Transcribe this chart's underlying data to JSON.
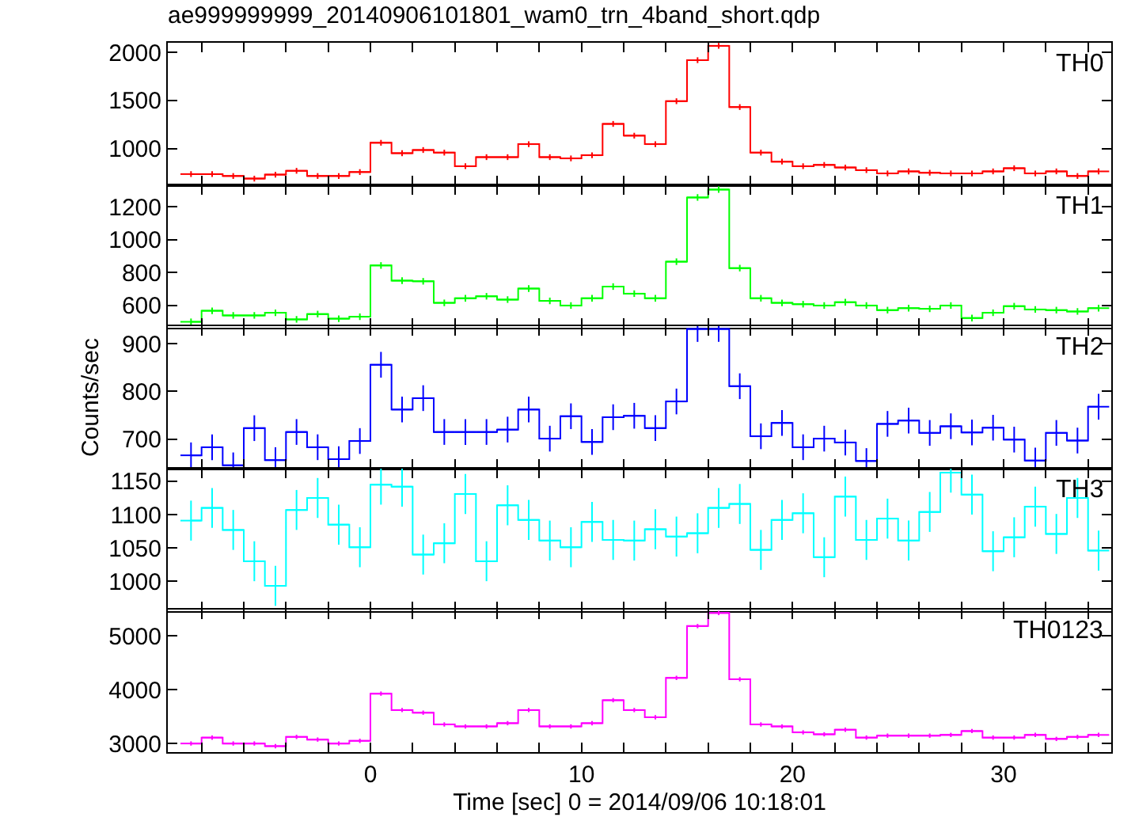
{
  "chart_data": [
    {
      "type": "step",
      "title": "ae999999999_20140906101801_wam0_trn_4band_short.qdp",
      "tick_labels": "y",
      "x": [
        -8.5,
        -7.5,
        -6.5,
        -5.5,
        -4.5,
        -3.5,
        -2.5,
        -1.5,
        -0.5,
        0.5,
        1.5,
        2.5,
        3.5,
        4.5,
        5.5,
        6.5,
        7.5,
        8.5,
        9.5,
        10.5,
        11.5,
        12.5,
        13.5,
        14.5,
        15.5,
        16.5,
        17.5,
        18.5,
        19.5,
        20.5,
        21.5,
        22.5,
        23.5,
        24.5,
        25.5,
        26.5,
        27.5,
        28.5,
        29.5,
        30.5,
        31.5,
        32.5,
        33.5,
        34.5
      ],
      "xlim": [
        -9.6,
        35.1
      ],
      "xticks": [
        {
          "value": -8,
          "label": null
        },
        {
          "value": -6,
          "label": null
        },
        {
          "value": -4,
          "label": null
        },
        {
          "value": -2,
          "label": null
        },
        0,
        {
          "value": 2,
          "label": null
        },
        {
          "value": 4,
          "label": null
        },
        {
          "value": 6,
          "label": null
        },
        {
          "value": 8,
          "label": null
        },
        10,
        {
          "value": 12,
          "label": null
        },
        {
          "value": 14,
          "label": null
        },
        {
          "value": 16,
          "label": null
        },
        {
          "value": 18,
          "label": null
        },
        20,
        {
          "value": 22,
          "label": null
        },
        {
          "value": 24,
          "label": null
        },
        {
          "value": 26,
          "label": null
        },
        {
          "value": 28,
          "label": null
        },
        30,
        {
          "value": 32,
          "label": null
        },
        {
          "value": 34,
          "label": null
        }
      ],
      "ylim": [
        620,
        2100
      ],
      "yticks": [
        1000,
        1500,
        2000
      ],
      "series": [
        {
          "name": "TH0",
          "color": "#ff0000",
          "values": [
            736,
            736,
            716,
            689,
            730,
            770,
            716,
            716,
            757,
            1061,
            953,
            986,
            959,
            818,
            912,
            912,
            1047,
            912,
            899,
            932,
            1257,
            1135,
            1047,
            1493,
            1919,
            2068,
            1432,
            959,
            865,
            818,
            831,
            804,
            777,
            743,
            764,
            750,
            743,
            743,
            764,
            797,
            743,
            764,
            716,
            764
          ],
          "errors": [
            30,
            30,
            30,
            30,
            30,
            30,
            30,
            30,
            30,
            30,
            30,
            30,
            30,
            30,
            30,
            30,
            30,
            30,
            30,
            30,
            30,
            30,
            30,
            30,
            30,
            30,
            30,
            30,
            30,
            30,
            30,
            30,
            30,
            30,
            30,
            30,
            30,
            30,
            30,
            30,
            30,
            30,
            30,
            30
          ],
          "xerrors": [
            0.5,
            0.5,
            0.5,
            0.5,
            0.5,
            0.5,
            0.5,
            0.5,
            0.5,
            0.5,
            0.5,
            0.5,
            0.5,
            0.5,
            0.5,
            0.5,
            0.5,
            0.5,
            0.5,
            0.5,
            0.5,
            0.5,
            0.5,
            0.5,
            0.5,
            0.5,
            0.5,
            0.5,
            0.5,
            0.5,
            0.5,
            0.5,
            0.5,
            0.5,
            0.5,
            0.5,
            0.5,
            0.5,
            0.5,
            0.5,
            0.5,
            0.5,
            0.5,
            0.5
          ]
        }
      ]
    },
    {
      "type": "step",
      "tick_labels": "y",
      "x": [
        -8.5,
        -7.5,
        -6.5,
        -5.5,
        -4.5,
        -3.5,
        -2.5,
        -1.5,
        -0.5,
        0.5,
        1.5,
        2.5,
        3.5,
        4.5,
        5.5,
        6.5,
        7.5,
        8.5,
        9.5,
        10.5,
        11.5,
        12.5,
        13.5,
        14.5,
        15.5,
        16.5,
        17.5,
        18.5,
        19.5,
        20.5,
        21.5,
        22.5,
        23.5,
        24.5,
        25.5,
        26.5,
        27.5,
        28.5,
        29.5,
        30.5,
        31.5,
        32.5,
        33.5,
        34.5
      ],
      "xlim": [
        -9.6,
        35.1
      ],
      "xticks": [
        {
          "value": -8,
          "label": null
        },
        {
          "value": -6,
          "label": null
        },
        {
          "value": -4,
          "label": null
        },
        {
          "value": -2,
          "label": null
        },
        0,
        {
          "value": 2,
          "label": null
        },
        {
          "value": 4,
          "label": null
        },
        {
          "value": 6,
          "label": null
        },
        {
          "value": 8,
          "label": null
        },
        10,
        {
          "value": 12,
          "label": null
        },
        {
          "value": 14,
          "label": null
        },
        {
          "value": 16,
          "label": null
        },
        {
          "value": 18,
          "label": null
        },
        20,
        {
          "value": 22,
          "label": null
        },
        {
          "value": 24,
          "label": null
        },
        {
          "value": 26,
          "label": null
        },
        {
          "value": 28,
          "label": null
        },
        30,
        {
          "value": 32,
          "label": null
        },
        {
          "value": 34,
          "label": null
        }
      ],
      "ylim": [
        465,
        1330
      ],
      "yticks": [
        600,
        800,
        1000,
        1200
      ],
      "series": [
        {
          "name": "TH1",
          "color": "#00ff00",
          "values": [
            501,
            568,
            540,
            540,
            556,
            516,
            548,
            520,
            532,
            843,
            751,
            747,
            616,
            644,
            656,
            636,
            703,
            628,
            600,
            644,
            715,
            672,
            644,
            866,
            1256,
            1304,
            827,
            644,
            616,
            608,
            600,
            620,
            600,
            572,
            584,
            580,
            600,
            524,
            556,
            596,
            576,
            572,
            564,
            584
          ],
          "errors": [
            20,
            20,
            20,
            20,
            20,
            20,
            20,
            20,
            20,
            20,
            20,
            20,
            20,
            20,
            20,
            20,
            20,
            20,
            20,
            20,
            20,
            20,
            20,
            20,
            20,
            20,
            20,
            20,
            20,
            20,
            20,
            20,
            20,
            20,
            20,
            20,
            20,
            20,
            20,
            20,
            20,
            20,
            20,
            20
          ],
          "xerrors": [
            0.5,
            0.5,
            0.5,
            0.5,
            0.5,
            0.5,
            0.5,
            0.5,
            0.5,
            0.5,
            0.5,
            0.5,
            0.5,
            0.5,
            0.5,
            0.5,
            0.5,
            0.5,
            0.5,
            0.5,
            0.5,
            0.5,
            0.5,
            0.5,
            0.5,
            0.5,
            0.5,
            0.5,
            0.5,
            0.5,
            0.5,
            0.5,
            0.5,
            0.5,
            0.5,
            0.5,
            0.5,
            0.5,
            0.5,
            0.5,
            0.5,
            0.5,
            0.5,
            0.5
          ]
        }
      ]
    },
    {
      "type": "step",
      "tick_labels": "y",
      "ylabel": "Counts/sec",
      "x": [
        -8.5,
        -7.5,
        -6.5,
        -5.5,
        -4.5,
        -3.5,
        -2.5,
        -1.5,
        -0.5,
        0.5,
        1.5,
        2.5,
        3.5,
        4.5,
        5.5,
        6.5,
        7.5,
        8.5,
        9.5,
        10.5,
        11.5,
        12.5,
        13.5,
        14.5,
        15.5,
        16.5,
        17.5,
        18.5,
        19.5,
        20.5,
        21.5,
        22.5,
        23.5,
        24.5,
        25.5,
        26.5,
        27.5,
        28.5,
        29.5,
        30.5,
        31.5,
        32.5,
        33.5,
        34.5
      ],
      "xlim": [
        -9.6,
        35.1
      ],
      "xticks": [
        {
          "value": -8,
          "label": null
        },
        {
          "value": -6,
          "label": null
        },
        {
          "value": -4,
          "label": null
        },
        {
          "value": -2,
          "label": null
        },
        0,
        {
          "value": 2,
          "label": null
        },
        {
          "value": 4,
          "label": null
        },
        {
          "value": 6,
          "label": null
        },
        {
          "value": 8,
          "label": null
        },
        10,
        {
          "value": 12,
          "label": null
        },
        {
          "value": 14,
          "label": null
        },
        {
          "value": 16,
          "label": null
        },
        {
          "value": 18,
          "label": null
        },
        20,
        {
          "value": 22,
          "label": null
        },
        {
          "value": 24,
          "label": null
        },
        {
          "value": 26,
          "label": null
        },
        {
          "value": 28,
          "label": null
        },
        30,
        {
          "value": 32,
          "label": null
        },
        {
          "value": 34,
          "label": null
        }
      ],
      "ylim": [
        638,
        937
      ],
      "yticks": [
        700,
        800,
        900
      ],
      "series": [
        {
          "name": "TH2",
          "color": "#0000ff",
          "values": [
            666,
            683,
            645,
            723,
            656,
            715,
            683,
            658,
            696,
            856,
            762,
            786,
            715,
            715,
            715,
            720,
            762,
            701,
            748,
            694,
            746,
            749,
            723,
            779,
            931,
            931,
            811,
            706,
            734,
            683,
            701,
            693,
            654,
            732,
            739,
            713,
            727,
            714,
            724,
            699,
            655,
            713,
            697,
            768
          ],
          "errors": [
            27,
            27,
            27,
            27,
            27,
            27,
            27,
            27,
            27,
            27,
            27,
            27,
            27,
            27,
            27,
            27,
            27,
            27,
            27,
            27,
            27,
            27,
            27,
            27,
            27,
            27,
            27,
            27,
            27,
            27,
            27,
            27,
            27,
            27,
            27,
            27,
            27,
            27,
            27,
            27,
            27,
            27,
            27,
            27
          ],
          "xerrors": [
            0.5,
            0.5,
            0.5,
            0.5,
            0.5,
            0.5,
            0.5,
            0.5,
            0.5,
            0.5,
            0.5,
            0.5,
            0.5,
            0.5,
            0.5,
            0.5,
            0.5,
            0.5,
            0.5,
            0.5,
            0.5,
            0.5,
            0.5,
            0.5,
            0.5,
            0.5,
            0.5,
            0.5,
            0.5,
            0.5,
            0.5,
            0.5,
            0.5,
            0.5,
            0.5,
            0.5,
            0.5,
            0.5,
            0.5,
            0.5,
            0.5,
            0.5,
            0.5,
            0.5
          ]
        }
      ]
    },
    {
      "type": "step",
      "tick_labels": "y",
      "x": [
        -8.5,
        -7.5,
        -6.5,
        -5.5,
        -4.5,
        -3.5,
        -2.5,
        -1.5,
        -0.5,
        0.5,
        1.5,
        2.5,
        3.5,
        4.5,
        5.5,
        6.5,
        7.5,
        8.5,
        9.5,
        10.5,
        11.5,
        12.5,
        13.5,
        14.5,
        15.5,
        16.5,
        17.5,
        18.5,
        19.5,
        20.5,
        21.5,
        22.5,
        23.5,
        24.5,
        25.5,
        26.5,
        27.5,
        28.5,
        29.5,
        30.5,
        31.5,
        32.5,
        33.5,
        34.5
      ],
      "xlim": [
        -9.6,
        35.1
      ],
      "xticks": [
        {
          "value": -8,
          "label": null
        },
        {
          "value": -6,
          "label": null
        },
        {
          "value": -4,
          "label": null
        },
        {
          "value": -2,
          "label": null
        },
        0,
        {
          "value": 2,
          "label": null
        },
        {
          "value": 4,
          "label": null
        },
        {
          "value": 6,
          "label": null
        },
        {
          "value": 8,
          "label": null
        },
        10,
        {
          "value": 12,
          "label": null
        },
        {
          "value": 14,
          "label": null
        },
        {
          "value": 16,
          "label": null
        },
        {
          "value": 18,
          "label": null
        },
        20,
        {
          "value": 22,
          "label": null
        },
        {
          "value": 24,
          "label": null
        },
        {
          "value": 26,
          "label": null
        },
        {
          "value": 28,
          "label": null
        },
        30,
        {
          "value": 32,
          "label": null
        },
        {
          "value": 34,
          "label": null
        }
      ],
      "ylim": [
        955,
        1169
      ],
      "yticks": [
        1000,
        1050,
        1100,
        1150
      ],
      "series": [
        {
          "name": "TH3",
          "color": "#00ffff",
          "values": [
            1091,
            1110,
            1077,
            1030,
            993,
            1107,
            1125,
            1085,
            1051,
            1145,
            1142,
            1040,
            1057,
            1131,
            1030,
            1114,
            1092,
            1061,
            1051,
            1089,
            1062,
            1061,
            1078,
            1067,
            1072,
            1110,
            1116,
            1047,
            1092,
            1102,
            1036,
            1127,
            1062,
            1094,
            1061,
            1104,
            1163,
            1130,
            1045,
            1066,
            1112,
            1071,
            1125,
            1046
          ],
          "errors": [
            30,
            30,
            30,
            30,
            30,
            30,
            30,
            30,
            30,
            30,
            30,
            30,
            30,
            30,
            30,
            30,
            30,
            30,
            30,
            30,
            30,
            30,
            30,
            30,
            30,
            30,
            30,
            30,
            30,
            30,
            30,
            30,
            30,
            30,
            30,
            30,
            30,
            30,
            30,
            30,
            30,
            30,
            30,
            30
          ],
          "xerrors": [
            0.5,
            0.5,
            0.5,
            0.5,
            0.5,
            0.5,
            0.5,
            0.5,
            0.5,
            0.5,
            0.5,
            0.5,
            0.5,
            0.5,
            0.5,
            0.5,
            0.5,
            0.5,
            0.5,
            0.5,
            0.5,
            0.5,
            0.5,
            0.5,
            0.5,
            0.5,
            0.5,
            0.5,
            0.5,
            0.5,
            0.5,
            0.5,
            0.5,
            0.5,
            0.5,
            0.5,
            0.5,
            0.5,
            0.5,
            0.5,
            0.5,
            0.5,
            0.5,
            0.5
          ]
        }
      ]
    },
    {
      "type": "step",
      "xlabel": "Time [sec] 0 = 2014/09/06 10:18:01",
      "x": [
        -8.5,
        -7.5,
        -6.5,
        -5.5,
        -4.5,
        -3.5,
        -2.5,
        -1.5,
        -0.5,
        0.5,
        1.5,
        2.5,
        3.5,
        4.5,
        5.5,
        6.5,
        7.5,
        8.5,
        9.5,
        10.5,
        11.5,
        12.5,
        13.5,
        14.5,
        15.5,
        16.5,
        17.5,
        18.5,
        19.5,
        20.5,
        21.5,
        22.5,
        23.5,
        24.5,
        25.5,
        26.5,
        27.5,
        28.5,
        29.5,
        30.5,
        31.5,
        32.5,
        33.5,
        34.5
      ],
      "xlim": [
        -9.6,
        35.1
      ],
      "xticks": [
        {
          "value": -8,
          "label": null
        },
        {
          "value": -6,
          "label": null
        },
        {
          "value": -4,
          "label": null
        },
        {
          "value": -2,
          "label": null
        },
        0,
        {
          "value": 2,
          "label": null
        },
        {
          "value": 4,
          "label": null
        },
        {
          "value": 6,
          "label": null
        },
        {
          "value": 8,
          "label": null
        },
        10,
        {
          "value": 12,
          "label": null
        },
        {
          "value": 14,
          "label": null
        },
        {
          "value": 16,
          "label": null
        },
        {
          "value": 18,
          "label": null
        },
        20,
        {
          "value": 22,
          "label": null
        },
        {
          "value": 24,
          "label": null
        },
        {
          "value": 26,
          "label": null
        },
        {
          "value": 28,
          "label": null
        },
        30,
        {
          "value": 32,
          "label": null
        },
        {
          "value": 34,
          "label": null
        }
      ],
      "ylim": [
        2840,
        5490
      ],
      "yticks": [
        3000,
        4000,
        5000
      ],
      "series": [
        {
          "name": "TH0123",
          "color": "#ff00ff",
          "values": [
            3000,
            3110,
            3000,
            3000,
            2951,
            3122,
            3073,
            3000,
            3049,
            3927,
            3622,
            3573,
            3354,
            3317,
            3317,
            3378,
            3622,
            3317,
            3317,
            3378,
            3805,
            3622,
            3488,
            4220,
            5183,
            5427,
            4195,
            3354,
            3317,
            3207,
            3171,
            3256,
            3110,
            3146,
            3146,
            3146,
            3159,
            3232,
            3110,
            3110,
            3159,
            3085,
            3122,
            3159
          ],
          "errors": [
            40,
            40,
            40,
            40,
            40,
            40,
            40,
            40,
            40,
            40,
            40,
            40,
            40,
            40,
            40,
            40,
            40,
            40,
            40,
            40,
            40,
            40,
            40,
            40,
            40,
            40,
            40,
            40,
            40,
            40,
            40,
            40,
            40,
            40,
            40,
            40,
            40,
            40,
            40,
            40,
            40,
            40,
            40,
            40
          ],
          "xerrors": [
            0.5,
            0.5,
            0.5,
            0.5,
            0.5,
            0.5,
            0.5,
            0.5,
            0.5,
            0.5,
            0.5,
            0.5,
            0.5,
            0.5,
            0.5,
            0.5,
            0.5,
            0.5,
            0.5,
            0.5,
            0.5,
            0.5,
            0.5,
            0.5,
            0.5,
            0.5,
            0.5,
            0.5,
            0.5,
            0.5,
            0.5,
            0.5,
            0.5,
            0.5,
            0.5,
            0.5,
            0.5,
            0.5,
            0.5,
            0.5,
            0.5,
            0.5,
            0.5,
            0.5
          ]
        }
      ]
    }
  ]
}
